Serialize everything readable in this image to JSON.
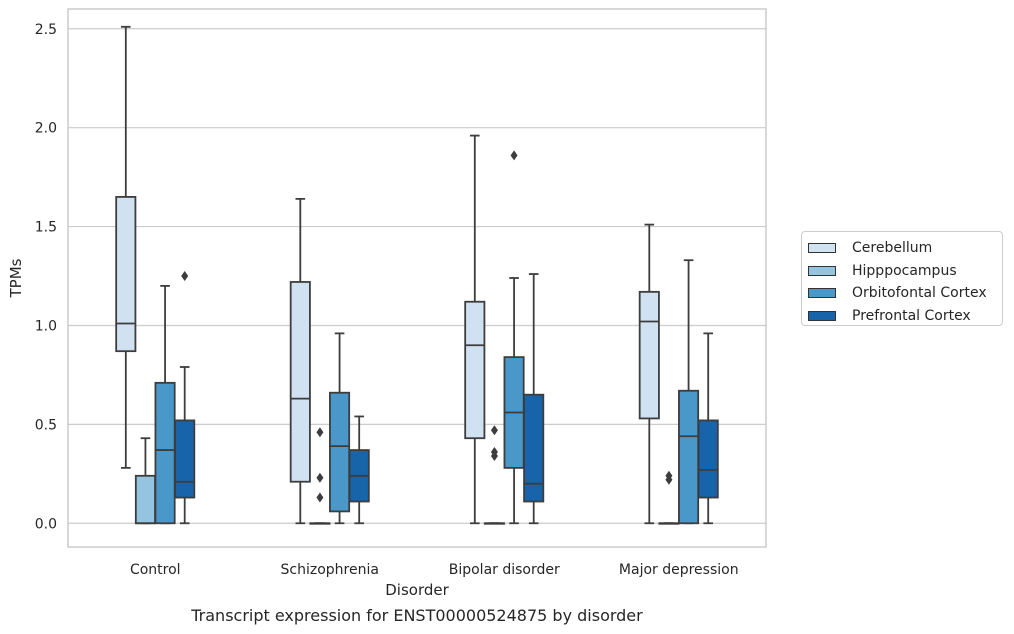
{
  "chart_data": {
    "type": "box",
    "xlabel": "Disorder",
    "ylabel": "TPMs",
    "caption": "Transcript expression for ENST00000524875 by disorder",
    "ylim": [
      -0.12,
      2.6
    ],
    "yticks": [
      "0.0",
      "0.5",
      "1.0",
      "1.5",
      "2.0",
      "2.5"
    ],
    "grid": true,
    "legend_position": "right",
    "categories": [
      "Control",
      "Schizophrenia",
      "Bipolar disorder",
      "Major depression"
    ],
    "series": [
      {
        "name": "Cerebellum",
        "color": "#d0e1f2",
        "boxes": [
          {
            "q1": 0.87,
            "median": 1.01,
            "q3": 1.65,
            "whisker_low": 0.28,
            "whisker_high": 2.51,
            "outliers": []
          },
          {
            "q1": 0.21,
            "median": 0.63,
            "q3": 1.22,
            "whisker_low": 0.0,
            "whisker_high": 1.64,
            "outliers": []
          },
          {
            "q1": 0.43,
            "median": 0.9,
            "q3": 1.12,
            "whisker_low": 0.0,
            "whisker_high": 1.96,
            "outliers": []
          },
          {
            "q1": 0.53,
            "median": 1.02,
            "q3": 1.17,
            "whisker_low": 0.0,
            "whisker_high": 1.51,
            "outliers": []
          }
        ]
      },
      {
        "name": "Hipppocampus",
        "color": "#94c4df",
        "boxes": [
          {
            "q1": 0.0,
            "median": 0.0,
            "q3": 0.24,
            "whisker_low": 0.0,
            "whisker_high": 0.43,
            "outliers": []
          },
          {
            "q1": 0.0,
            "median": 0.0,
            "q3": 0.0,
            "whisker_low": 0.0,
            "whisker_high": 0.0,
            "outliers": [
              0.13,
              0.23,
              0.46
            ]
          },
          {
            "q1": 0.0,
            "median": 0.0,
            "q3": 0.0,
            "whisker_low": 0.0,
            "whisker_high": 0.0,
            "outliers": [
              0.34,
              0.36,
              0.47
            ]
          },
          {
            "q1": 0.0,
            "median": 0.0,
            "q3": 0.0,
            "whisker_low": 0.0,
            "whisker_high": 0.0,
            "outliers": [
              0.22,
              0.24
            ]
          }
        ]
      },
      {
        "name": "Orbitofontal Cortex",
        "color": "#4a98c9",
        "boxes": [
          {
            "q1": 0.0,
            "median": 0.37,
            "q3": 0.71,
            "whisker_low": 0.0,
            "whisker_high": 1.2,
            "outliers": []
          },
          {
            "q1": 0.06,
            "median": 0.39,
            "q3": 0.66,
            "whisker_low": 0.0,
            "whisker_high": 0.96,
            "outliers": []
          },
          {
            "q1": 0.28,
            "median": 0.56,
            "q3": 0.84,
            "whisker_low": 0.0,
            "whisker_high": 1.24,
            "outliers": [
              1.86
            ]
          },
          {
            "q1": 0.0,
            "median": 0.44,
            "q3": 0.67,
            "whisker_low": 0.0,
            "whisker_high": 1.33,
            "outliers": []
          }
        ]
      },
      {
        "name": "Prefrontal Cortex",
        "color": "#1764ab",
        "boxes": [
          {
            "q1": 0.13,
            "median": 0.21,
            "q3": 0.52,
            "whisker_low": 0.0,
            "whisker_high": 0.79,
            "outliers": [
              1.25
            ]
          },
          {
            "q1": 0.11,
            "median": 0.24,
            "q3": 0.37,
            "whisker_low": 0.0,
            "whisker_high": 0.54,
            "outliers": []
          },
          {
            "q1": 0.11,
            "median": 0.2,
            "q3": 0.65,
            "whisker_low": 0.0,
            "whisker_high": 1.26,
            "outliers": []
          },
          {
            "q1": 0.13,
            "median": 0.27,
            "q3": 0.52,
            "whisker_low": 0.0,
            "whisker_high": 0.96,
            "outliers": []
          }
        ]
      }
    ]
  }
}
